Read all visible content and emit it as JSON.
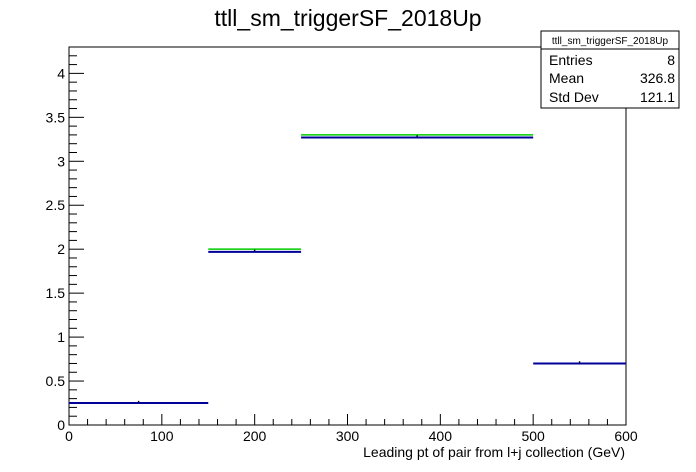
{
  "chart_data": {
    "type": "histogram",
    "title": "ttll_sm_triggerSF_2018Up",
    "xlabel": "Leading pt of pair from l+j collection (GeV)",
    "ylabel": "",
    "xlim": [
      0,
      600
    ],
    "ylim": [
      0,
      4.3
    ],
    "x_ticks": [
      "0",
      "100",
      "200",
      "300",
      "400",
      "500",
      "600"
    ],
    "y_ticks": [
      "0",
      "0.5",
      "1",
      "1.5",
      "2",
      "2.5",
      "3",
      "3.5",
      "4"
    ],
    "grid": false,
    "bins": [
      {
        "x_low": 0,
        "x_high": 150,
        "value": 0.25
      },
      {
        "x_low": 150,
        "x_high": 250,
        "value": 1.97
      },
      {
        "x_low": 250,
        "x_high": 500,
        "value": 3.27
      },
      {
        "x_low": 500,
        "x_high": 600,
        "value": 0.7
      }
    ],
    "band": [
      {
        "x_low": 150,
        "x_high": 250,
        "upper": 2.0
      },
      {
        "x_low": 250,
        "x_high": 500,
        "upper": 3.3
      }
    ],
    "colors": {
      "line": "#000099",
      "band": "#00cc00",
      "axis": "#000000"
    },
    "stats_box": {
      "title": "ttll_sm_triggerSF_2018Up",
      "rows": [
        {
          "label": "Entries",
          "value": "8"
        },
        {
          "label": "Mean",
          "value": "326.8"
        },
        {
          "label": "Std Dev",
          "value": "121.1"
        }
      ]
    }
  }
}
